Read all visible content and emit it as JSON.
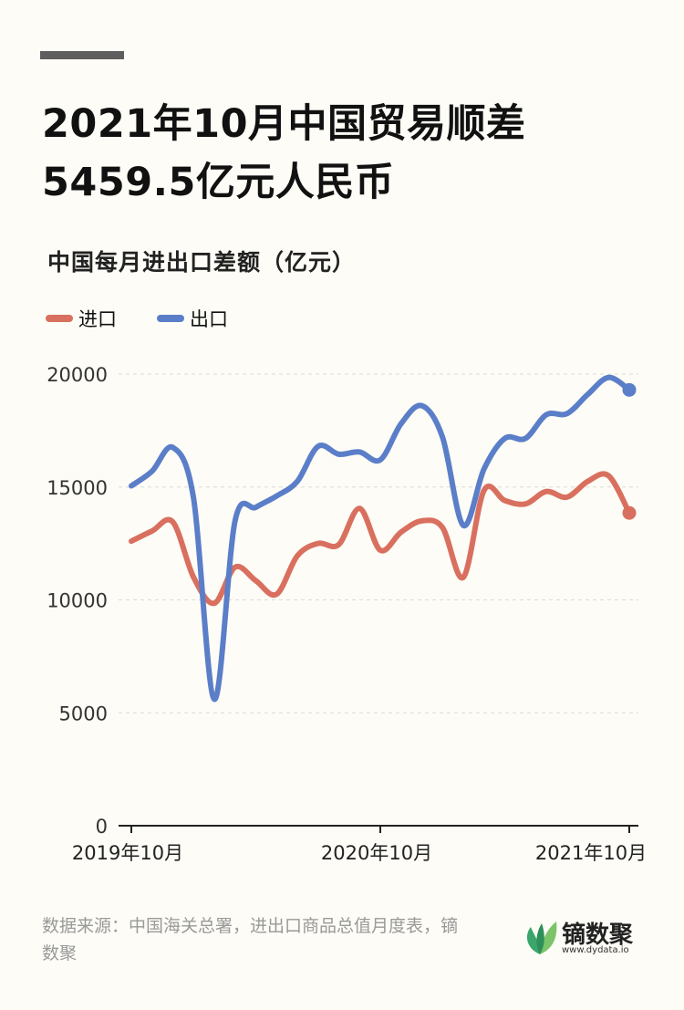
{
  "title_line1": "2021年10月中国贸易顺差",
  "title_line2": "5459.5亿元人民币",
  "subtitle": "中国每月进出口差额（亿元）",
  "legend": [
    {
      "label": "进口",
      "color": "#d9705f"
    },
    {
      "label": "出口",
      "color": "#5b7ec9"
    }
  ],
  "footer": {
    "source": "数据来源：中国海关总署，进出口商品总值月度表，镝数聚",
    "brand_name": "镝数聚",
    "brand_url": "www.dydata.io"
  },
  "chart_data": {
    "type": "line",
    "x": [
      "2019-10",
      "2019-11",
      "2019-12",
      "2020-01",
      "2020-02",
      "2020-03",
      "2020-04",
      "2020-05",
      "2020-06",
      "2020-07",
      "2020-08",
      "2020-09",
      "2020-10",
      "2020-11",
      "2020-12",
      "2021-01",
      "2021-02",
      "2021-03",
      "2021-04",
      "2021-05",
      "2021-06",
      "2021-07",
      "2021-08",
      "2021-09",
      "2021-10"
    ],
    "x_tick_labels": [
      "2019年10月",
      "2020年10月",
      "2021年10月"
    ],
    "y_ticks": [
      0,
      5000,
      10000,
      15000,
      20000
    ],
    "ylim": [
      0,
      20000
    ],
    "grid": "horizontal dashed",
    "legend_position": "top-left",
    "series": [
      {
        "name": "进口",
        "color": "#d9705f",
        "values": [
          12600,
          13050,
          13450,
          11000,
          9850,
          11450,
          10850,
          10250,
          11950,
          12500,
          12450,
          14050,
          12200,
          13000,
          13500,
          13200,
          11000,
          14850,
          14400,
          14250,
          14800,
          14550,
          15250,
          15500,
          13850
        ]
      },
      {
        "name": "出口",
        "color": "#5b7ec9",
        "values": [
          15050,
          15700,
          16750,
          14500,
          5600,
          13500,
          14100,
          14600,
          15250,
          16800,
          16450,
          16550,
          16200,
          17800,
          18600,
          17200,
          13300,
          15800,
          17150,
          17150,
          18200,
          18250,
          19100,
          19850,
          19300
        ]
      }
    ]
  }
}
